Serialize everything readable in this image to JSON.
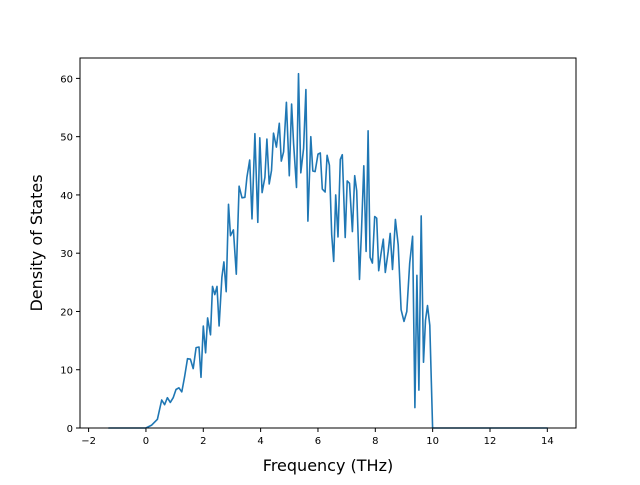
{
  "chart_data": {
    "type": "line",
    "title": "",
    "xlabel": "Frequency (THz)",
    "ylabel": "Density of States",
    "xlim": [
      -2.3,
      15.0
    ],
    "ylim": [
      0,
      63.5
    ],
    "xticks": [
      -2,
      0,
      2,
      4,
      6,
      8,
      10,
      12,
      14
    ],
    "xtick_labels": [
      "−2",
      "0",
      "2",
      "4",
      "6",
      "8",
      "10",
      "12",
      "14"
    ],
    "yticks": [
      0,
      10,
      20,
      30,
      40,
      50,
      60
    ],
    "ytick_labels": [
      "0",
      "10",
      "20",
      "30",
      "40",
      "50",
      "60"
    ],
    "grid": false,
    "line_color": "#1f77b4",
    "series": [
      {
        "x": [
          -1.3,
          0.0,
          0.2,
          0.4,
          0.55,
          0.65,
          0.75,
          0.85,
          0.95,
          1.05,
          1.15,
          1.25,
          1.35,
          1.45,
          1.55,
          1.65,
          1.75,
          1.85,
          1.92,
          2.0,
          2.08,
          2.15,
          2.25,
          2.32,
          2.4,
          2.48,
          2.55,
          2.65,
          2.72,
          2.8,
          2.88,
          2.95,
          3.05,
          3.15,
          3.25,
          3.35,
          3.45,
          3.52,
          3.62,
          3.7,
          3.8,
          3.9,
          3.97,
          4.05,
          4.15,
          4.22,
          4.3,
          4.38,
          4.45,
          4.55,
          4.65,
          4.72,
          4.8,
          4.9,
          5.0,
          5.08,
          5.15,
          5.25,
          5.32,
          5.4,
          5.5,
          5.58,
          5.65,
          5.75,
          5.82,
          5.9,
          6.0,
          6.08,
          6.15,
          6.25,
          6.32,
          6.4,
          6.48,
          6.55,
          6.62,
          6.7,
          6.78,
          6.85,
          6.95,
          7.02,
          7.1,
          7.2,
          7.28,
          7.35,
          7.45,
          7.52,
          7.6,
          7.68,
          7.75,
          7.82,
          7.9,
          7.98,
          8.05,
          8.12,
          8.2,
          8.28,
          8.35,
          8.45,
          8.52,
          8.6,
          8.7,
          8.8,
          8.9,
          9.0,
          9.1,
          9.2,
          9.3,
          9.38,
          9.45,
          9.52,
          9.6,
          9.68,
          9.75,
          9.82,
          9.9,
          10.0,
          10.08,
          14.0
        ],
        "y": [
          0,
          0,
          0.5,
          1.5,
          4.8,
          4.0,
          5.2,
          4.4,
          5.2,
          6.6,
          6.9,
          6.2,
          8.8,
          11.9,
          11.8,
          10.2,
          13.8,
          13.9,
          8.7,
          17.5,
          12.9,
          18.9,
          16.0,
          24.3,
          22.9,
          24.3,
          17.5,
          25.9,
          28.5,
          23.4,
          38.4,
          33.0,
          34.0,
          26.4,
          41.5,
          39.5,
          39.6,
          43.0,
          46.0,
          35.9,
          50.5,
          35.3,
          49.8,
          40.4,
          43.0,
          49.6,
          41.9,
          44.2,
          50.6,
          48.2,
          52.3,
          45.8,
          47.4,
          55.9,
          43.3,
          55.6,
          48.8,
          41.3,
          60.8,
          43.8,
          48.0,
          58.1,
          35.5,
          50.0,
          44.1,
          44.0,
          47.0,
          47.2,
          41.0,
          40.5,
          46.8,
          45.1,
          33.2,
          28.6,
          40.0,
          32.8,
          46.1,
          46.9,
          32.7,
          42.4,
          42.0,
          33.7,
          43.3,
          40.7,
          25.5,
          33.9,
          45.0,
          30.3,
          51.0,
          29.3,
          28.3,
          36.3,
          36.0,
          27.0,
          29.9,
          32.4,
          26.7,
          30.3,
          33.4,
          27.2,
          35.8,
          31.4,
          20.3,
          18.3,
          20.0,
          28.3,
          32.9,
          3.5,
          26.2,
          6.5,
          36.4,
          11.3,
          18.5,
          21.0,
          17.6,
          0,
          0,
          0
        ]
      }
    ]
  }
}
